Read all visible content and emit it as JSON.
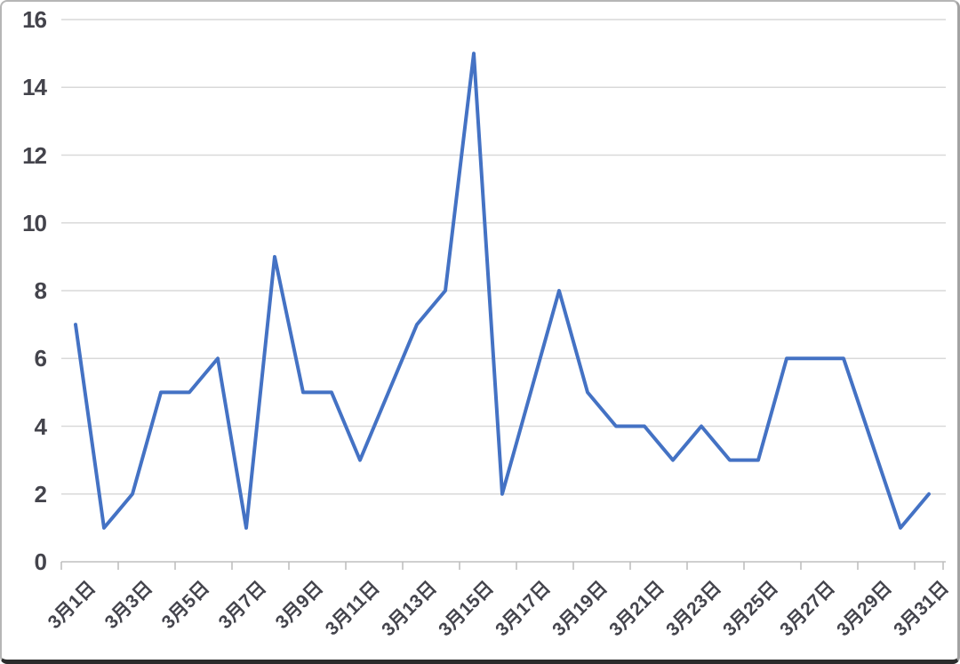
{
  "chart_data": {
    "type": "line",
    "title": "",
    "xlabel": "",
    "ylabel": "",
    "categories": [
      "3月1日",
      "3月2日",
      "3月3日",
      "3月4日",
      "3月5日",
      "3月6日",
      "3月7日",
      "3月8日",
      "3月9日",
      "3月10日",
      "3月11日",
      "3月12日",
      "3月13日",
      "3月14日",
      "3月15日",
      "3月16日",
      "3月17日",
      "3月18日",
      "3月19日",
      "3月20日",
      "3月21日",
      "3月22日",
      "3月23日",
      "3月24日",
      "3月25日",
      "3月26日",
      "3月27日",
      "3月28日",
      "3月29日",
      "3月30日",
      "3月31日"
    ],
    "values": [
      7,
      1,
      2,
      5,
      5,
      6,
      1,
      9,
      5,
      5,
      3,
      5,
      7,
      8,
      15,
      2,
      5,
      8,
      5,
      4,
      4,
      3,
      4,
      3,
      3,
      6,
      6,
      6,
      3.5,
      1,
      2
    ],
    "x_tick_labels": [
      "3月1日",
      "3月3日",
      "3月5日",
      "3月7日",
      "3月9日",
      "3月11日",
      "3月13日",
      "3月15日",
      "3月17日",
      "3月19日",
      "3月21日",
      "3月23日",
      "3月25日",
      "3月27日",
      "3月29日",
      "3月31日"
    ],
    "y_tick_labels": [
      "0",
      "2",
      "4",
      "6",
      "8",
      "10",
      "12",
      "14",
      "16"
    ],
    "y_ticks": [
      0,
      2,
      4,
      6,
      8,
      10,
      12,
      14,
      16
    ],
    "ylim": [
      0,
      16
    ],
    "grid": true,
    "legend": "none",
    "colors": {
      "line": "#4472C4",
      "gridline": "#D9D9D9",
      "axis": "#BFBFBF",
      "label_text": "#44444c"
    }
  }
}
